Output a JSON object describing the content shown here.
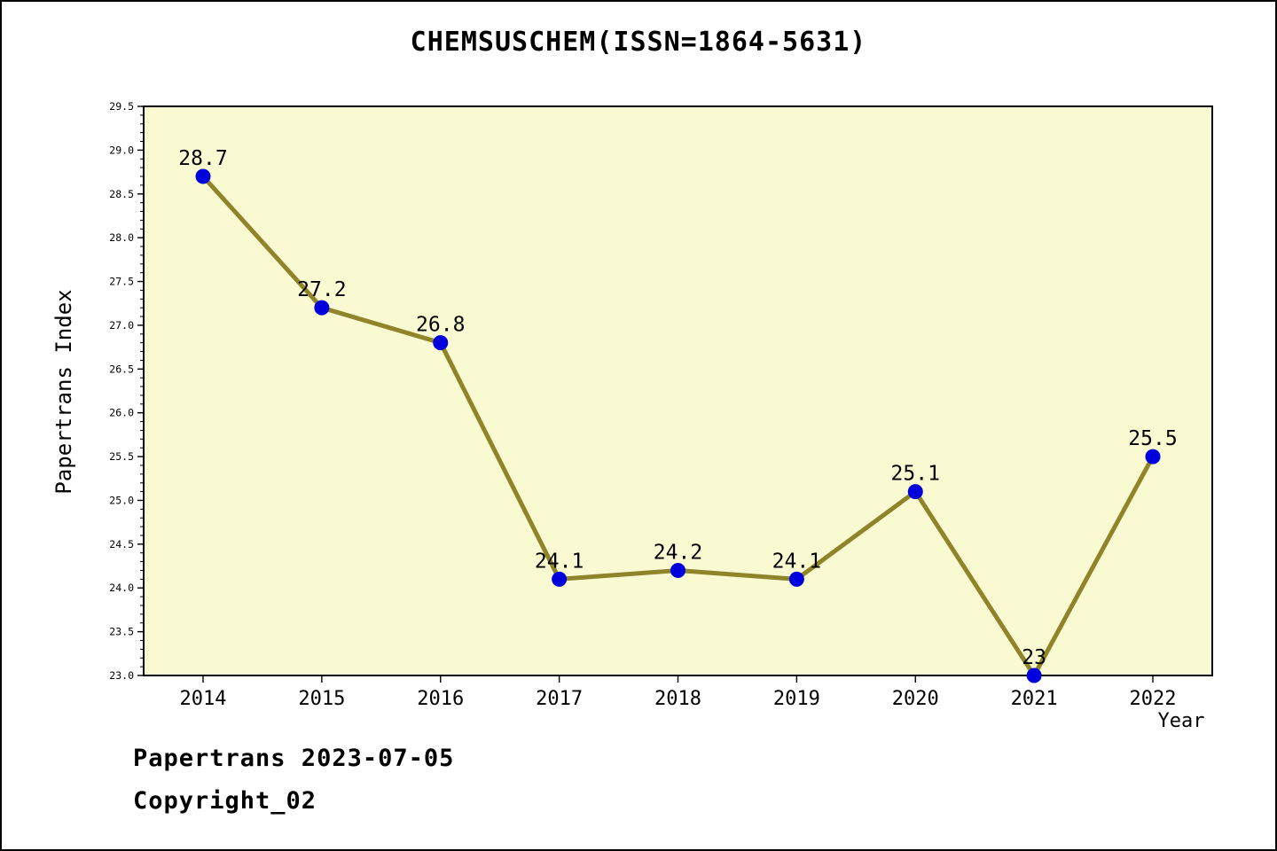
{
  "chart_data": {
    "type": "line",
    "title": "CHEMSUSCHEM(ISSN=1864-5631)",
    "x": [
      "2014",
      "2015",
      "2016",
      "2017",
      "2018",
      "2019",
      "2020",
      "2021",
      "2022"
    ],
    "values": [
      28.7,
      27.2,
      26.8,
      24.1,
      24.2,
      24.1,
      25.1,
      23,
      25.5
    ],
    "point_labels": [
      "28.7",
      "27.2",
      "26.8",
      "24.1",
      "24.2",
      "24.1",
      "25.1",
      "23",
      "25.5"
    ],
    "xlabel": "Year",
    "ylabel": "Papertrans Index",
    "ylim": [
      23.0,
      29.5
    ],
    "ytick_step": 0.5,
    "yminor_step": 0.1,
    "grid": false,
    "legend": "none",
    "line_color": "#8F842A",
    "marker_color": "#0000DD",
    "plot_bg": "#FAFAD2",
    "axis_color": "#000000"
  },
  "footer": {
    "line1": "Papertrans 2023-07-05",
    "line2": "Copyright_02"
  }
}
